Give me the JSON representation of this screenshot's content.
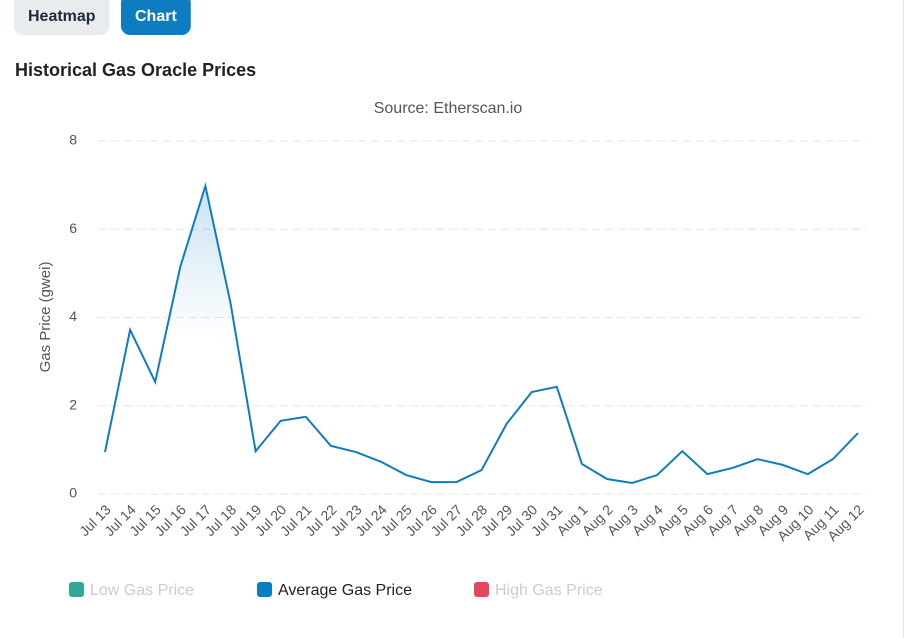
{
  "tabs": [
    "Heatmap",
    "Chart"
  ],
  "active_tab": 1,
  "heading": "Historical Gas Oracle Prices",
  "chart_data": {
    "type": "line",
    "subtitle": "Source: Etherscan.io",
    "y_label": "Gas Price (gwei)",
    "categories": [
      "Jul 13",
      "Jul 14",
      "Jul 15",
      "Jul 16",
      "Jul 17",
      "Jul 18",
      "Jul 19",
      "Jul 20",
      "Jul 21",
      "Jul 22",
      "Jul 23",
      "Jul 24",
      "Jul 25",
      "Jul 26",
      "Jul 27",
      "Jul 28",
      "Jul 29",
      "Jul 30",
      "Jul 31",
      "Aug 1",
      "Aug 2",
      "Aug 3",
      "Aug 4",
      "Aug 5",
      "Aug 6",
      "Aug 7",
      "Aug 8",
      "Aug 9",
      "Aug 10",
      "Aug 11",
      "Aug 12"
    ],
    "series": [
      {
        "name": "Low Gas Price",
        "color": "#1a9e8a",
        "visible": false
      },
      {
        "name": "Average Gas Price",
        "color": "#0e7cc1",
        "visible": true,
        "values": [
          0.95,
          3.72,
          2.54,
          5.15,
          6.98,
          4.33,
          0.97,
          1.66,
          1.75,
          1.09,
          0.95,
          0.73,
          0.43,
          0.27,
          0.27,
          0.54,
          1.59,
          2.31,
          2.43,
          0.68,
          0.34,
          0.25,
          0.43,
          0.97,
          0.45,
          0.59,
          0.79,
          0.66,
          0.45,
          0.79,
          1.38
        ]
      },
      {
        "name": "High Gas Price",
        "color": "#e0344a",
        "visible": false
      }
    ],
    "ylim": [
      0,
      8
    ],
    "yticks": [
      0,
      2,
      4,
      6,
      8
    ],
    "grid": true
  }
}
